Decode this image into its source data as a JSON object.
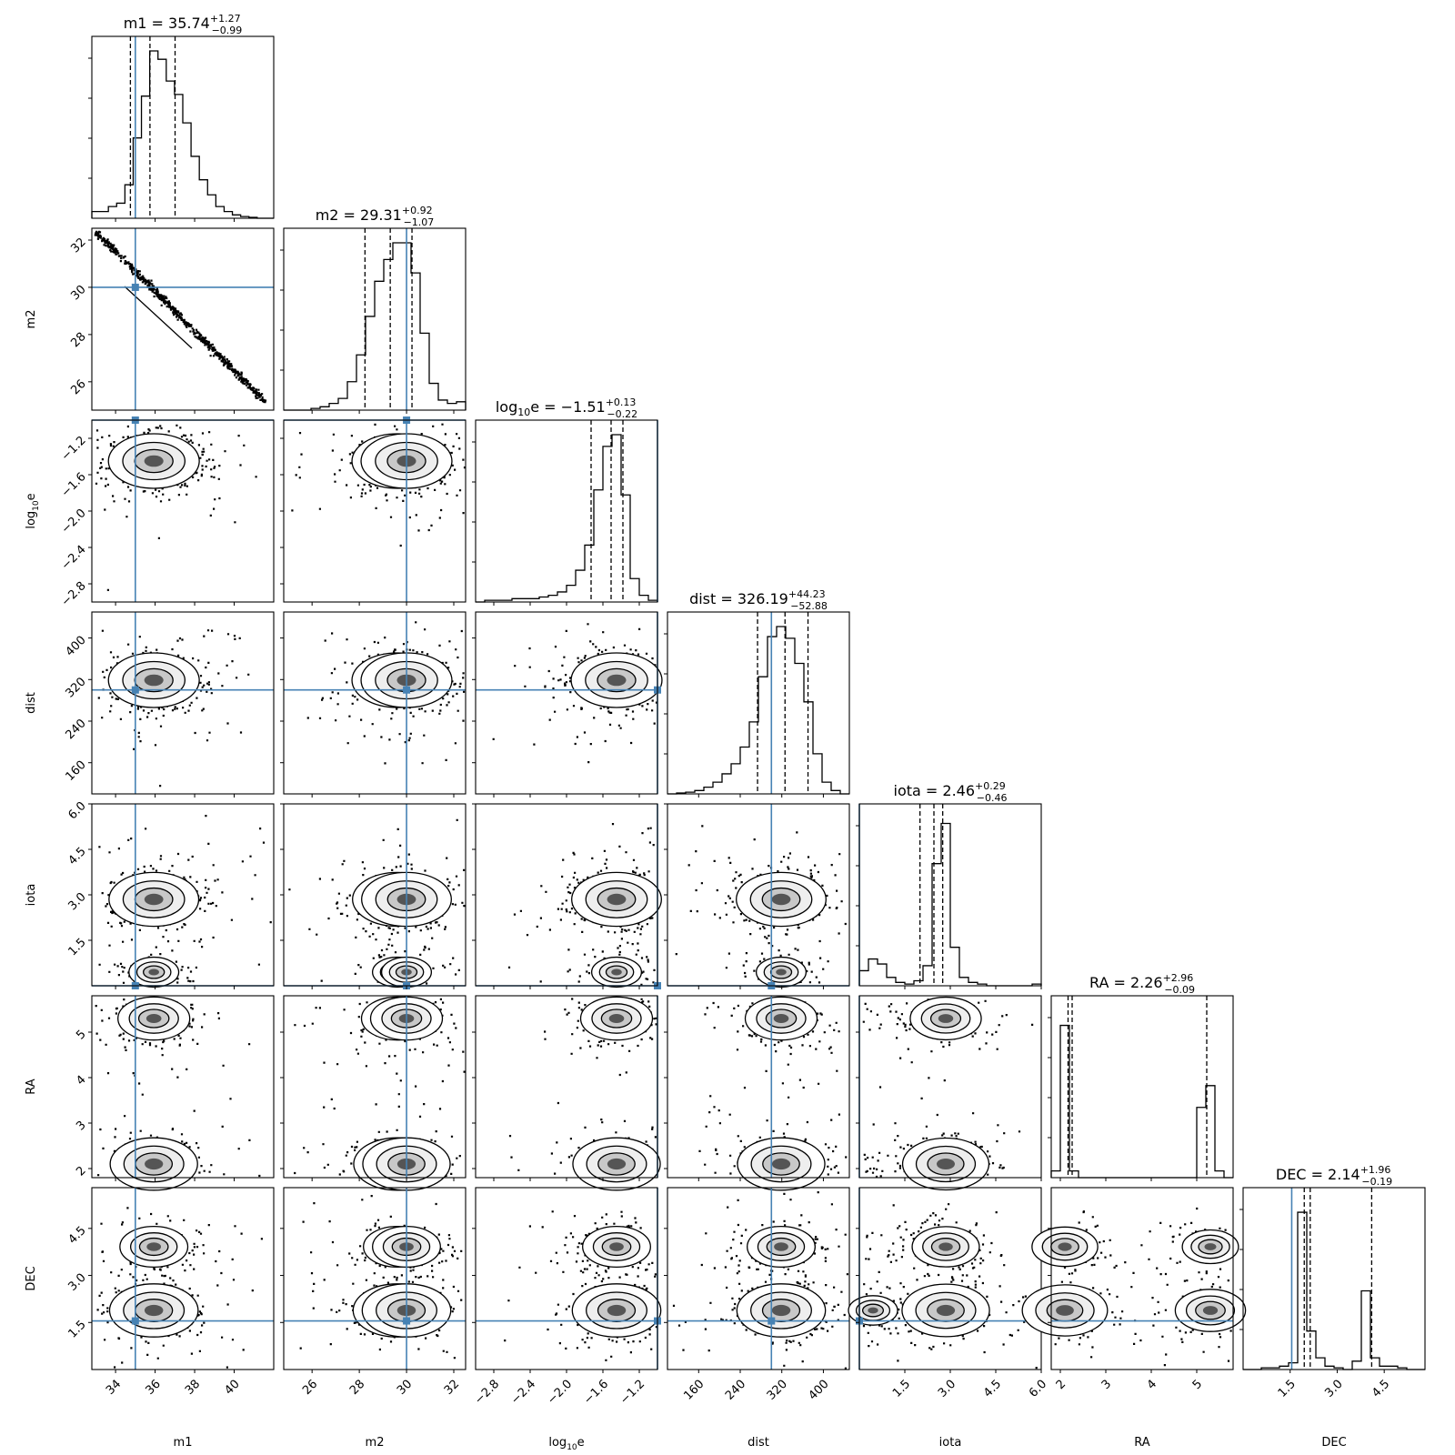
{
  "chart_data": {
    "type": "corner",
    "truth_color": "#4682b4",
    "parameters": [
      {
        "label": "m1",
        "label_base": "m1",
        "label_sub": "",
        "title_name": "m1",
        "title_value": "35.74",
        "title_plus": "+1.27",
        "title_minus": "−0.99",
        "median": 35.74,
        "q16": 34.75,
        "q84": 37.01,
        "truth": 35.0,
        "range": [
          32.8,
          42.0
        ],
        "ticks": [
          34,
          36,
          38,
          40
        ],
        "tick_labels": [
          "34",
          "36",
          "38",
          "40"
        ],
        "hist": [
          0.04,
          0.04,
          0.07,
          0.09,
          0.2,
          0.48,
          0.73,
          1.0,
          0.95,
          0.82,
          0.74,
          0.57,
          0.37,
          0.23,
          0.14,
          0.07,
          0.04,
          0.02,
          0.01,
          0.005,
          0.0,
          0.0
        ]
      },
      {
        "label": "m2",
        "label_base": "m2",
        "label_sub": "",
        "title_name": "m2",
        "title_value": "29.31",
        "title_plus": "+0.92",
        "title_minus": "−1.07",
        "median": 29.31,
        "q16": 28.24,
        "q84": 30.23,
        "truth": 30.0,
        "range": [
          24.8,
          32.5
        ],
        "ticks": [
          26,
          28,
          30,
          32
        ],
        "tick_labels": [
          "26",
          "28",
          "30",
          "32"
        ],
        "hist": [
          0.0,
          0.0,
          0.0,
          0.01,
          0.02,
          0.04,
          0.07,
          0.17,
          0.33,
          0.56,
          0.77,
          0.9,
          1.0,
          1.0,
          0.82,
          0.46,
          0.16,
          0.06,
          0.04,
          0.05
        ]
      },
      {
        "label": "log10e",
        "label_base": "log",
        "label_sub": "10",
        "label_tail": "e",
        "title_name": "log10e",
        "title_value": "−1.51",
        "title_plus": "+0.13",
        "title_minus": "−0.22",
        "median": -1.51,
        "q16": -1.73,
        "q84": -1.38,
        "truth": -1.0,
        "range": [
          -3.0,
          -1.0
        ],
        "ticks": [
          -2.8,
          -2.4,
          -2.0,
          -1.6,
          -1.2
        ],
        "tick_labels": [
          "−2.8",
          "−2.4",
          "−2.0",
          "−1.6",
          "−1.2"
        ],
        "hist": [
          0.0,
          0.01,
          0.01,
          0.01,
          0.02,
          0.02,
          0.02,
          0.03,
          0.04,
          0.06,
          0.1,
          0.19,
          0.34,
          0.67,
          0.93,
          1.0,
          0.64,
          0.14,
          0.04,
          0.01
        ]
      },
      {
        "label": "dist",
        "label_base": "dist",
        "label_sub": "",
        "title_name": "dist",
        "title_value": "326.19",
        "title_plus": "+44.23",
        "title_minus": "−52.88",
        "median": 326.19,
        "q16": 273.31,
        "q84": 370.42,
        "truth": 300.0,
        "range": [
          100,
          450
        ],
        "ticks": [
          160,
          240,
          320,
          400
        ],
        "tick_labels": [
          "160",
          "240",
          "320",
          "400"
        ],
        "hist": [
          0.0,
          0.005,
          0.01,
          0.02,
          0.04,
          0.07,
          0.12,
          0.18,
          0.28,
          0.43,
          0.7,
          0.94,
          1.0,
          0.93,
          0.78,
          0.55,
          0.24,
          0.07,
          0.02,
          0.0
        ]
      },
      {
        "label": "iota",
        "label_base": "iota",
        "label_sub": "",
        "title_name": "iota",
        "title_value": "2.46",
        "title_plus": "+0.29",
        "title_minus": "−0.46",
        "median": 2.46,
        "q16": 2.0,
        "q84": 2.75,
        "truth": 0.0,
        "range": [
          0.0,
          6.0
        ],
        "ticks": [
          1.5,
          3.0,
          4.5,
          6.0
        ],
        "tick_labels": [
          "1.5",
          "3.0",
          "4.5",
          "6.0"
        ],
        "hist": [
          0.09,
          0.16,
          0.13,
          0.05,
          0.02,
          0.01,
          0.03,
          0.12,
          0.73,
          0.97,
          0.23,
          0.05,
          0.02,
          0.01,
          0.0,
          0.0,
          0.0,
          0.0,
          0.0,
          0.01
        ]
      },
      {
        "label": "RA",
        "label_base": "RA",
        "label_sub": "",
        "title_name": "RA",
        "title_value": "2.26",
        "title_plus": "+2.96",
        "title_minus": "−0.09",
        "median": 2.26,
        "q16": 2.17,
        "q84": 5.22,
        "truth": null,
        "range": [
          1.8,
          5.8
        ],
        "ticks": [
          2,
          3,
          4,
          5
        ],
        "tick_labels": [
          "2",
          "3",
          "4",
          "5"
        ],
        "hist": [
          0.04,
          0.91,
          0.04,
          0.0,
          0.0,
          0.0,
          0.0,
          0.0,
          0.0,
          0.0,
          0.0,
          0.0,
          0.0,
          0.0,
          0.0,
          0.0,
          0.42,
          0.55,
          0.04,
          0.0
        ]
      },
      {
        "label": "DEC",
        "label_base": "DEC",
        "label_sub": "",
        "title_name": "DEC",
        "title_value": "2.14",
        "title_plus": "+1.96",
        "title_minus": "−0.19",
        "median": 2.14,
        "q16": 1.95,
        "q84": 4.1,
        "truth": 1.55,
        "range": [
          0.0,
          5.8
        ],
        "ticks": [
          1.5,
          3.0,
          4.5
        ],
        "tick_labels": [
          "1.5",
          "3.0",
          "4.5"
        ],
        "hist": [
          0.0,
          0.0,
          0.01,
          0.01,
          0.02,
          0.04,
          0.94,
          0.23,
          0.07,
          0.02,
          0.01,
          0.0,
          0.05,
          0.47,
          0.07,
          0.02,
          0.02,
          0.01,
          0.0,
          0.0
        ]
      }
    ]
  }
}
